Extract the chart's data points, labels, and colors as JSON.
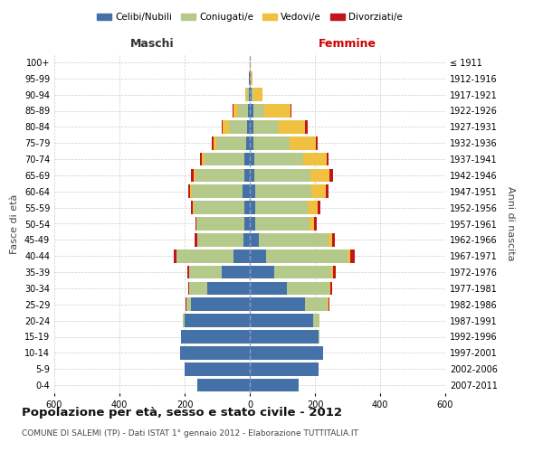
{
  "age_groups": [
    "0-4",
    "5-9",
    "10-14",
    "15-19",
    "20-24",
    "25-29",
    "30-34",
    "35-39",
    "40-44",
    "45-49",
    "50-54",
    "55-59",
    "60-64",
    "65-69",
    "70-74",
    "75-79",
    "80-84",
    "85-89",
    "90-94",
    "95-99",
    "100+"
  ],
  "birth_years": [
    "2007-2011",
    "2002-2006",
    "1997-2001",
    "1992-1996",
    "1987-1991",
    "1982-1986",
    "1977-1981",
    "1972-1976",
    "1967-1971",
    "1962-1966",
    "1957-1961",
    "1952-1956",
    "1947-1951",
    "1942-1946",
    "1937-1941",
    "1932-1936",
    "1927-1931",
    "1922-1926",
    "1917-1921",
    "1912-1916",
    "≤ 1911"
  ],
  "males": {
    "celibe": [
      160,
      200,
      215,
      210,
      200,
      180,
      130,
      85,
      50,
      20,
      18,
      18,
      22,
      18,
      18,
      12,
      8,
      6,
      3,
      2,
      1
    ],
    "coniugato": [
      0,
      0,
      0,
      0,
      5,
      15,
      55,
      100,
      175,
      140,
      145,
      155,
      155,
      150,
      120,
      90,
      55,
      30,
      5,
      0,
      0
    ],
    "vedovo": [
      0,
      0,
      0,
      0,
      0,
      0,
      0,
      1,
      1,
      2,
      2,
      3,
      5,
      5,
      10,
      10,
      20,
      15,
      5,
      1,
      0
    ],
    "divorziato": [
      0,
      0,
      0,
      0,
      0,
      2,
      3,
      5,
      8,
      8,
      2,
      5,
      8,
      8,
      5,
      5,
      3,
      3,
      0,
      0,
      0
    ]
  },
  "females": {
    "nubile": [
      150,
      210,
      225,
      210,
      195,
      170,
      115,
      75,
      50,
      28,
      18,
      18,
      18,
      15,
      15,
      12,
      10,
      10,
      5,
      2,
      1
    ],
    "coniugata": [
      0,
      0,
      0,
      5,
      20,
      70,
      130,
      175,
      250,
      215,
      165,
      160,
      170,
      170,
      150,
      110,
      80,
      35,
      5,
      0,
      0
    ],
    "vedova": [
      0,
      0,
      0,
      0,
      0,
      2,
      3,
      5,
      8,
      10,
      15,
      30,
      45,
      60,
      70,
      80,
      80,
      80,
      30,
      5,
      1
    ],
    "divorziata": [
      0,
      0,
      0,
      0,
      0,
      2,
      5,
      8,
      15,
      8,
      8,
      8,
      10,
      10,
      8,
      5,
      8,
      3,
      0,
      0,
      0
    ]
  },
  "colors": {
    "celibe_nubile": "#4472a8",
    "coniugato": "#b5c98a",
    "vedovo": "#f0c040",
    "divorziato": "#c0181a"
  },
  "xlim": 600,
  "title": "Popolazione per età, sesso e stato civile - 2012",
  "subtitle": "COMUNE DI SALEMI (TP) - Dati ISTAT 1° gennaio 2012 - Elaborazione TUTTITALIA.IT",
  "xlabel_left": "Maschi",
  "xlabel_right": "Femmine",
  "ylabel_left": "Fasce di età",
  "ylabel_right": "Anni di nascita",
  "legend_labels": [
    "Celibi/Nubili",
    "Coniugati/e",
    "Vedovi/e",
    "Divorziati/e"
  ],
  "background_color": "#ffffff",
  "grid_color": "#cccccc"
}
